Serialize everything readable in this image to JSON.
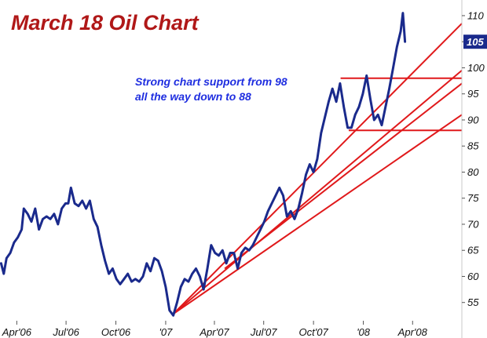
{
  "chart_data": {
    "type": "line",
    "title": "March 18 Oil Chart",
    "xlabel": "",
    "ylabel": "",
    "x_ticks": [
      "Apr'06",
      "Jul'06",
      "Oct'06",
      "'07",
      "Apr'07",
      "Jul'07",
      "Oct'07",
      "'08",
      "Apr'08"
    ],
    "x_tick_dates": [
      "2006-04-01",
      "2006-07-01",
      "2006-10-01",
      "2007-01-01",
      "2007-04-01",
      "2007-07-01",
      "2007-10-01",
      "2008-01-01",
      "2008-04-01"
    ],
    "xlim": [
      "2006-03-01",
      "2008-07-01"
    ],
    "ylim": [
      51.5,
      113
    ],
    "y_ticks": [
      55,
      60,
      65,
      70,
      75,
      80,
      85,
      90,
      95,
      100,
      105,
      110
    ],
    "last_value_label": "105",
    "grid": false,
    "series": [
      {
        "color": "#1a2a8c",
        "points": [
          [
            "2006-03-03",
            62.5
          ],
          [
            "2006-03-08",
            60.5
          ],
          [
            "2006-03-13",
            63.5
          ],
          [
            "2006-03-20",
            64.5
          ],
          [
            "2006-03-27",
            66.5
          ],
          [
            "2006-04-03",
            67.5
          ],
          [
            "2006-04-10",
            69
          ],
          [
            "2006-04-14",
            73
          ],
          [
            "2006-04-21",
            72
          ],
          [
            "2006-04-28",
            70.5
          ],
          [
            "2006-05-05",
            73
          ],
          [
            "2006-05-12",
            69
          ],
          [
            "2006-05-19",
            71
          ],
          [
            "2006-05-26",
            71.5
          ],
          [
            "2006-06-02",
            71
          ],
          [
            "2006-06-09",
            72
          ],
          [
            "2006-06-16",
            70
          ],
          [
            "2006-06-23",
            73
          ],
          [
            "2006-06-30",
            74
          ],
          [
            "2006-07-05",
            74
          ],
          [
            "2006-07-10",
            77
          ],
          [
            "2006-07-17",
            74
          ],
          [
            "2006-07-24",
            73.5
          ],
          [
            "2006-07-31",
            74.5
          ],
          [
            "2006-08-07",
            73
          ],
          [
            "2006-08-14",
            74.5
          ],
          [
            "2006-08-21",
            71
          ],
          [
            "2006-08-28",
            69.5
          ],
          [
            "2006-09-04",
            66
          ],
          [
            "2006-09-11",
            63
          ],
          [
            "2006-09-18",
            60.5
          ],
          [
            "2006-09-25",
            61.5
          ],
          [
            "2006-10-02",
            59.5
          ],
          [
            "2006-10-09",
            58.5
          ],
          [
            "2006-10-16",
            59.5
          ],
          [
            "2006-10-23",
            60.5
          ],
          [
            "2006-10-30",
            59
          ],
          [
            "2006-11-06",
            59.5
          ],
          [
            "2006-11-13",
            59
          ],
          [
            "2006-11-20",
            60
          ],
          [
            "2006-11-27",
            62.5
          ],
          [
            "2006-12-04",
            61
          ],
          [
            "2006-12-11",
            63.5
          ],
          [
            "2006-12-18",
            63
          ],
          [
            "2006-12-25",
            61
          ],
          [
            "2007-01-01",
            58
          ],
          [
            "2007-01-08",
            53.5
          ],
          [
            "2007-01-15",
            52.5
          ],
          [
            "2007-01-22",
            55
          ],
          [
            "2007-01-29",
            58
          ],
          [
            "2007-02-05",
            59.5
          ],
          [
            "2007-02-12",
            59
          ],
          [
            "2007-02-19",
            60.5
          ],
          [
            "2007-02-26",
            61.5
          ],
          [
            "2007-03-05",
            60
          ],
          [
            "2007-03-12",
            57.5
          ],
          [
            "2007-03-19",
            61.5
          ],
          [
            "2007-03-26",
            66
          ],
          [
            "2007-04-02",
            64.5
          ],
          [
            "2007-04-09",
            64
          ],
          [
            "2007-04-16",
            65
          ],
          [
            "2007-04-23",
            62.5
          ],
          [
            "2007-04-30",
            64.5
          ],
          [
            "2007-05-07",
            64.5
          ],
          [
            "2007-05-14",
            61.5
          ],
          [
            "2007-05-21",
            64.5
          ],
          [
            "2007-05-28",
            65.5
          ],
          [
            "2007-06-04",
            65
          ],
          [
            "2007-06-11",
            66
          ],
          [
            "2007-06-18",
            67.5
          ],
          [
            "2007-06-25",
            69
          ],
          [
            "2007-07-02",
            70.5
          ],
          [
            "2007-07-09",
            72.5
          ],
          [
            "2007-07-16",
            74
          ],
          [
            "2007-07-23",
            75.5
          ],
          [
            "2007-07-30",
            77
          ],
          [
            "2007-08-06",
            75.5
          ],
          [
            "2007-08-13",
            71.5
          ],
          [
            "2007-08-20",
            72.5
          ],
          [
            "2007-08-27",
            71
          ],
          [
            "2007-09-03",
            73
          ],
          [
            "2007-09-10",
            76
          ],
          [
            "2007-09-17",
            79.5
          ],
          [
            "2007-09-24",
            81.5
          ],
          [
            "2007-10-01",
            80
          ],
          [
            "2007-10-08",
            82.5
          ],
          [
            "2007-10-15",
            87.5
          ],
          [
            "2007-10-22",
            90.5
          ],
          [
            "2007-10-29",
            93.5
          ],
          [
            "2007-11-05",
            96
          ],
          [
            "2007-11-12",
            93.5
          ],
          [
            "2007-11-19",
            97
          ],
          [
            "2007-11-26",
            92.5
          ],
          [
            "2007-12-03",
            88.5
          ],
          [
            "2007-12-10",
            88.5
          ],
          [
            "2007-12-17",
            91
          ],
          [
            "2007-12-24",
            92.5
          ],
          [
            "2007-12-31",
            95
          ],
          [
            "2008-01-07",
            98.5
          ],
          [
            "2008-01-14",
            94
          ],
          [
            "2008-01-21",
            90
          ],
          [
            "2008-01-28",
            91
          ],
          [
            "2008-02-04",
            89
          ],
          [
            "2008-02-11",
            92.5
          ],
          [
            "2008-02-18",
            96
          ],
          [
            "2008-02-25",
            100
          ],
          [
            "2008-03-03",
            104
          ],
          [
            "2008-03-10",
            107
          ],
          [
            "2008-03-14",
            110.5
          ],
          [
            "2008-03-18",
            105
          ]
        ]
      }
    ],
    "trendlines": [
      {
        "from": [
          "2007-01-15",
          52.8
        ],
        "to": [
          "2008-07-01",
          108.5
        ],
        "color": "#e0191b"
      },
      {
        "from": [
          "2007-01-15",
          52.8
        ],
        "to": [
          "2008-07-01",
          99.5
        ],
        "color": "#e0191b"
      },
      {
        "from": [
          "2007-01-15",
          52.8
        ],
        "to": [
          "2008-07-01",
          91
        ],
        "color": "#e0191b"
      },
      {
        "from": [
          "2007-04-20",
          61.5
        ],
        "to": [
          "2008-07-01",
          97
        ],
        "color": "#e0191b"
      }
    ],
    "support_lines": [
      {
        "y": 98,
        "from": "2007-11-20",
        "to": "2008-07-01",
        "color": "#e0191b"
      },
      {
        "y": 88,
        "from": "2007-12-05",
        "to": "2008-07-01",
        "color": "#e0191b"
      }
    ],
    "annotation": {
      "lines": [
        "Strong chart support from 98",
        "all the way down to 88"
      ]
    }
  }
}
